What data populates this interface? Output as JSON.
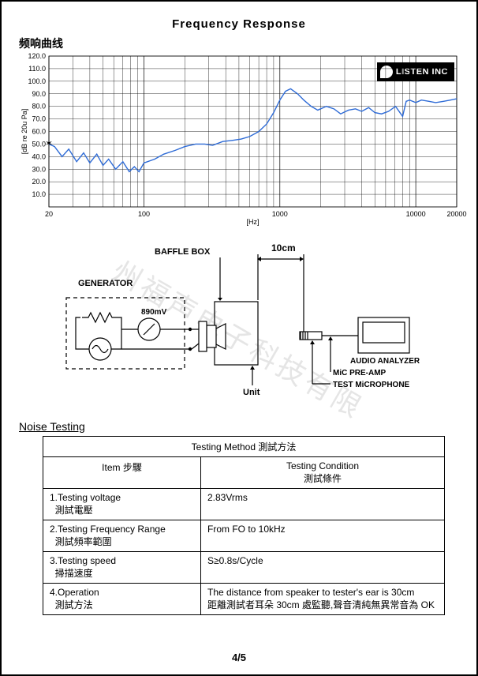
{
  "page_title": "Frequency   Response",
  "subtitle": "频响曲线",
  "watermark": "州福声电子科技有限",
  "logo_text": "LISTEN INC",
  "chart": {
    "type": "line",
    "xlabel": "[Hz]",
    "ylabel": "[dB re 20u Pa]",
    "ylim": [
      0,
      120
    ],
    "ytick_step": 10,
    "xlog_ticks": [
      20,
      100,
      1000,
      10000,
      20000
    ],
    "line_color": "#2e6bd6",
    "grid_color": "#000000",
    "background_color": "#ffffff",
    "line_width": 1.4,
    "data": [
      [
        20,
        50
      ],
      [
        22,
        48
      ],
      [
        25,
        40
      ],
      [
        28,
        46
      ],
      [
        32,
        36
      ],
      [
        36,
        43
      ],
      [
        40,
        35
      ],
      [
        45,
        42
      ],
      [
        50,
        33
      ],
      [
        55,
        38
      ],
      [
        62,
        30
      ],
      [
        70,
        36
      ],
      [
        78,
        28
      ],
      [
        85,
        32
      ],
      [
        92,
        28
      ],
      [
        100,
        35
      ],
      [
        120,
        38
      ],
      [
        140,
        42
      ],
      [
        170,
        45
      ],
      [
        200,
        48
      ],
      [
        240,
        50
      ],
      [
        280,
        50
      ],
      [
        320,
        49
      ],
      [
        380,
        52
      ],
      [
        450,
        53
      ],
      [
        520,
        54
      ],
      [
        600,
        56
      ],
      [
        700,
        60
      ],
      [
        800,
        66
      ],
      [
        900,
        75
      ],
      [
        1000,
        85
      ],
      [
        1100,
        92
      ],
      [
        1200,
        94
      ],
      [
        1350,
        90
      ],
      [
        1500,
        85
      ],
      [
        1700,
        80
      ],
      [
        1900,
        77
      ],
      [
        2200,
        80
      ],
      [
        2500,
        78
      ],
      [
        2800,
        74
      ],
      [
        3200,
        77
      ],
      [
        3600,
        78
      ],
      [
        4000,
        76
      ],
      [
        4500,
        79
      ],
      [
        5000,
        75
      ],
      [
        5600,
        74
      ],
      [
        6300,
        76
      ],
      [
        7100,
        80
      ],
      [
        8000,
        72
      ],
      [
        8500,
        84
      ],
      [
        9000,
        85
      ],
      [
        10000,
        83
      ],
      [
        11000,
        85
      ],
      [
        12500,
        84
      ],
      [
        14000,
        83
      ],
      [
        16000,
        84
      ],
      [
        18000,
        85
      ],
      [
        20000,
        86
      ]
    ]
  },
  "diagram": {
    "labels": {
      "baffle": "BAFFLE BOX",
      "distance": "10cm",
      "generator": "GENERATOR",
      "voltage": "890mV",
      "unit": "Unit",
      "analyzer": "AUDIO ANALYZER",
      "preamp": "MiC PRE-AMP",
      "mic": "TEST MiCROPHONE"
    }
  },
  "noise": {
    "section_title": "Noise  Testing",
    "header_method": "Testing Method 測試方法",
    "header_item": "Item 步驟",
    "header_cond": "Testing Condition",
    "header_cond_cn": "測試條件",
    "rows": [
      {
        "item_en": "1.Testing  voltage",
        "item_cn": "測試電壓",
        "cond": "2.83Vrms"
      },
      {
        "item_en": "2.Testing Frequency Range",
        "item_cn": "測試頻率範圍",
        "cond": "From FO to 10kHz"
      },
      {
        "item_en": "3.Testing speed",
        "item_cn": "掃描速度",
        "cond": "S≥0.8s/Cycle"
      },
      {
        "item_en": "4.Operation",
        "item_cn": "測試方法",
        "cond": "The distance from speaker to tester's ear is 30cm",
        "cond2": "距離測試者耳朵 30cm 處監聽,聲音清純無異常音為 OK"
      }
    ]
  },
  "page_number": "4/5"
}
